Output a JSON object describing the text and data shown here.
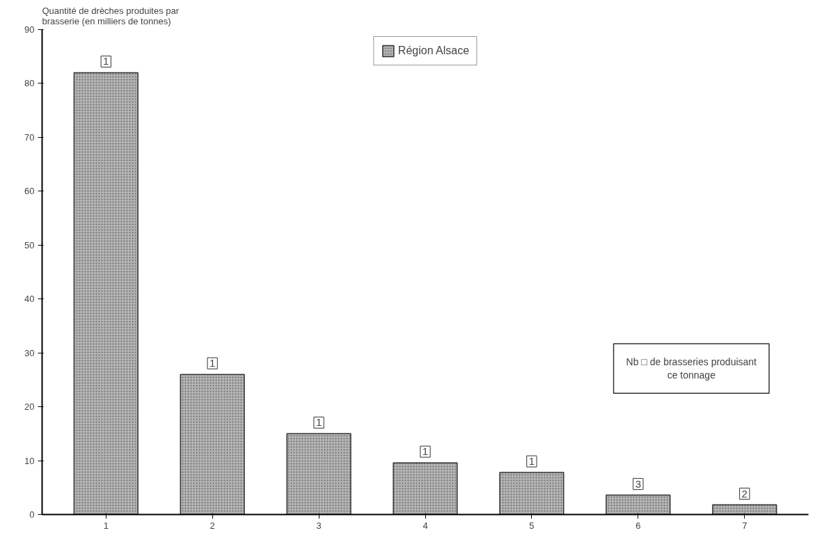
{
  "chart_data": {
    "type": "bar",
    "ylabel": "Quantité de drèches produites par\nbrasserie (en milliers de tonnes)",
    "categories": [
      "1",
      "2",
      "3",
      "4",
      "5",
      "6",
      "7"
    ],
    "series": [
      {
        "name": "Région Alsace",
        "color": "#b4b4b4",
        "values": [
          82,
          26,
          15,
          9.6,
          7.8,
          3.6,
          1.8
        ]
      }
    ],
    "ylim": [
      0,
      90
    ],
    "yticks": [
      0,
      10,
      20,
      30,
      40,
      50,
      60,
      70,
      80,
      90
    ],
    "grid": false,
    "legend": "top",
    "annotations": [
      {
        "text": "1",
        "x": "1",
        "y": 82
      },
      {
        "text": "1",
        "x": "2",
        "y": 26
      },
      {
        "text": "1",
        "x": "3",
        "y": 15
      },
      {
        "text": "1",
        "x": "4",
        "y": 9.6
      },
      {
        "text": "1",
        "x": "5",
        "y": 7.8
      },
      {
        "text": "3",
        "x": "6",
        "y": 3.6
      },
      {
        "text": "2",
        "x": "7",
        "y": 1.8
      },
      "Nb □ de brasseries produisant\nce tonnage"
    ]
  }
}
